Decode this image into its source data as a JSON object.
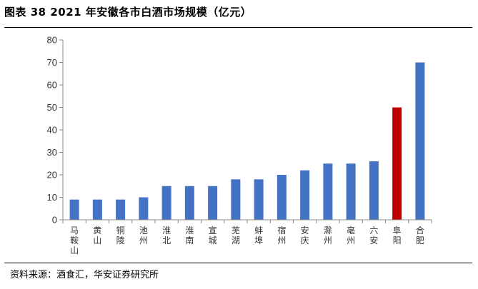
{
  "header": {
    "title": "图表 38 2021 年安徽各市白酒市场规模（亿元）"
  },
  "footer": {
    "source": "资料来源：酒食汇，华安证券研究所"
  },
  "chart_data": {
    "type": "bar",
    "title": "图表 38 2021 年安徽各市白酒市场规模（亿元）",
    "categories": [
      "马鞍山",
      "黄山",
      "铜陵",
      "池州",
      "淮北",
      "淮南",
      "宣城",
      "芜湖",
      "蚌埠",
      "宿州",
      "安庆",
      "滁州",
      "亳州",
      "六安",
      "阜阳",
      "合肥"
    ],
    "values": [
      9,
      9,
      9,
      10,
      15,
      15,
      15,
      18,
      18,
      20,
      22,
      25,
      25,
      26,
      50,
      70
    ],
    "ylim": [
      0,
      80
    ],
    "yticks": [
      0,
      10,
      20,
      30,
      40,
      50,
      60,
      70,
      80
    ],
    "grid": false,
    "colors": {
      "default": "#4472C4",
      "highlight": "#C00000",
      "highlight_category": "阜阳"
    }
  }
}
